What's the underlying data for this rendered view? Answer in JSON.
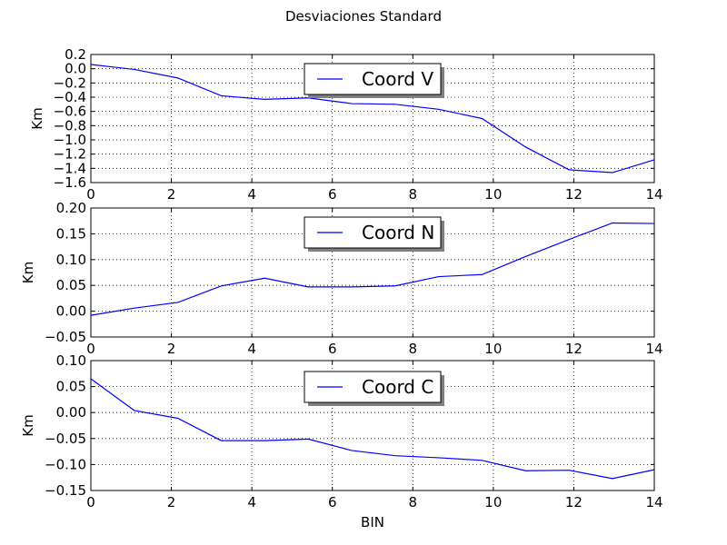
{
  "figure": {
    "suptitle": "Desviaciones Standard"
  },
  "colors": {
    "line": "#0000ff",
    "axes": "#000000",
    "grid": "#000000",
    "legend_shadow": "#808080"
  },
  "chart_data": [
    {
      "type": "line",
      "title": "",
      "xlabel": "",
      "ylabel": "Km",
      "xlim": [
        0,
        14
      ],
      "ylim": [
        -1.6,
        0.2
      ],
      "xticks": [
        0,
        2,
        4,
        6,
        8,
        10,
        12,
        14
      ],
      "xtick_labels": [
        "0",
        "2",
        "4",
        "6",
        "8",
        "10",
        "12",
        "14"
      ],
      "yticks": [
        0.2,
        0.0,
        -0.2,
        -0.4,
        -0.6,
        -0.8,
        -1.0,
        -1.2,
        -1.4,
        -1.6
      ],
      "ytick_labels": [
        "0.2",
        "0.0",
        "−0.2",
        "−0.4",
        "−0.6",
        "−0.8",
        "−1.0",
        "−1.2",
        "−1.4",
        "−1.6"
      ],
      "grid": true,
      "legend_position": "upper center",
      "series": [
        {
          "name": "Coord V",
          "x": [
            0,
            1.08,
            2.16,
            3.24,
            4.32,
            5.4,
            6.48,
            7.56,
            8.64,
            9.72,
            10.8,
            11.88,
            12.96,
            14.0
          ],
          "y": [
            0.06,
            -0.01,
            -0.13,
            -0.38,
            -0.43,
            -0.41,
            -0.49,
            -0.5,
            -0.57,
            -0.7,
            -1.1,
            -1.42,
            -1.46,
            -1.28
          ]
        }
      ]
    },
    {
      "type": "line",
      "title": "",
      "xlabel": "",
      "ylabel": "Km",
      "xlim": [
        0,
        14
      ],
      "ylim": [
        -0.05,
        0.2
      ],
      "xticks": [
        0,
        2,
        4,
        6,
        8,
        10,
        12,
        14
      ],
      "xtick_labels": [
        "0",
        "2",
        "4",
        "6",
        "8",
        "10",
        "12",
        "14"
      ],
      "yticks": [
        0.2,
        0.15,
        0.1,
        0.05,
        0.0,
        -0.05
      ],
      "ytick_labels": [
        "0.20",
        "0.15",
        "0.10",
        "0.05",
        "0.00",
        "−0.05"
      ],
      "grid": true,
      "legend_position": "upper center",
      "series": [
        {
          "name": "Coord N",
          "x": [
            0,
            1.08,
            2.16,
            3.24,
            4.32,
            5.4,
            6.48,
            7.56,
            8.64,
            9.72,
            10.8,
            11.88,
            12.96,
            14.0
          ],
          "y": [
            -0.008,
            0.006,
            0.017,
            0.049,
            0.064,
            0.047,
            0.047,
            0.049,
            0.067,
            0.071,
            0.106,
            0.139,
            0.171,
            0.17
          ]
        }
      ]
    },
    {
      "type": "line",
      "title": "",
      "xlabel": "BIN",
      "ylabel": "Km",
      "xlim": [
        0,
        14
      ],
      "ylim": [
        -0.15,
        0.1
      ],
      "xticks": [
        0,
        2,
        4,
        6,
        8,
        10,
        12,
        14
      ],
      "xtick_labels": [
        "0",
        "2",
        "4",
        "6",
        "8",
        "10",
        "12",
        "14"
      ],
      "yticks": [
        0.1,
        0.05,
        0.0,
        -0.05,
        -0.1,
        -0.15
      ],
      "ytick_labels": [
        "0.10",
        "0.05",
        "0.00",
        "−0.05",
        "−0.10",
        "−0.15"
      ],
      "grid": true,
      "legend_position": "upper center",
      "series": [
        {
          "name": "Coord C",
          "x": [
            0,
            1.08,
            2.16,
            3.24,
            4.32,
            5.4,
            6.48,
            7.56,
            8.64,
            9.72,
            10.8,
            11.88,
            12.96,
            14.0
          ],
          "y": [
            0.065,
            0.004,
            -0.011,
            -0.054,
            -0.054,
            -0.051,
            -0.073,
            -0.083,
            -0.087,
            -0.092,
            -0.112,
            -0.111,
            -0.127,
            -0.11
          ]
        }
      ]
    }
  ]
}
